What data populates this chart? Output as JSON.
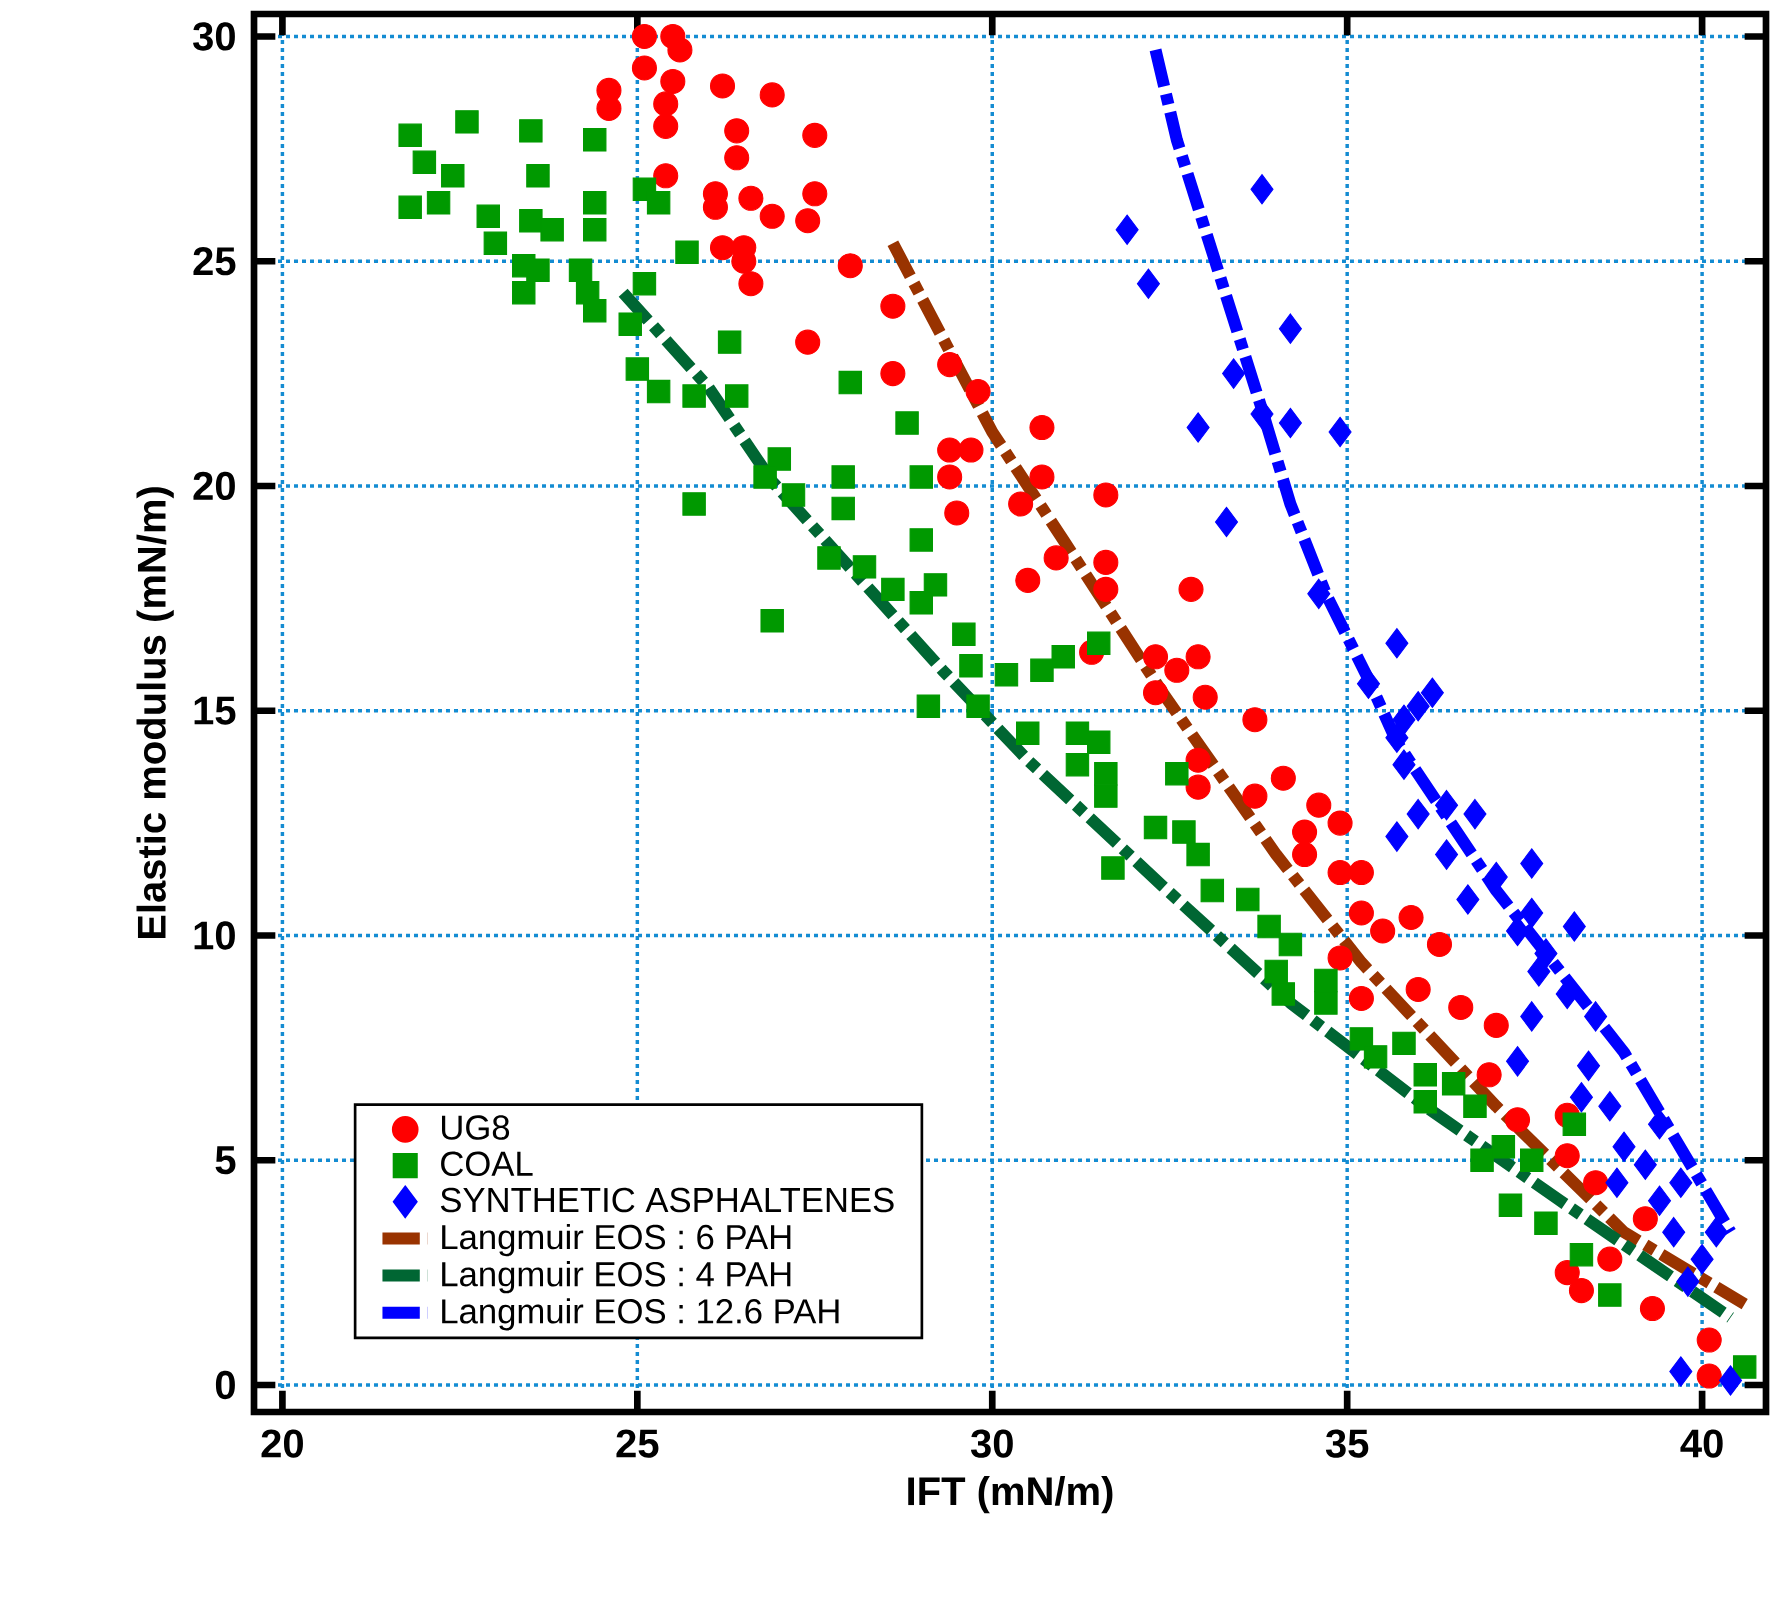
{
  "chart_data": {
    "type": "scatter",
    "xlabel": "IFT (mN/m)",
    "ylabel": "Elastic modulus (mN/m)",
    "xlim": [
      19.6,
      40.9
    ],
    "ylim": [
      -0.6,
      30.5
    ],
    "xticks": [
      20,
      25,
      30,
      35,
      40
    ],
    "yticks": [
      0,
      5,
      10,
      15,
      20,
      25,
      30
    ],
    "grid": true,
    "legend": "bottom left",
    "series": [
      {
        "name": "UG8",
        "color": "#ff0000",
        "marker": "circle",
        "x": [
          25.1,
          25.5,
          25.6,
          25.1,
          25.5,
          24.6,
          24.6,
          25.4,
          25.4,
          26.2,
          26.9,
          26.4,
          27.5,
          26.4,
          25.4,
          26.1,
          26.1,
          26.6,
          26.9,
          27.5,
          27.4,
          26.2,
          26.5,
          26.5,
          26.6,
          28.0,
          28.6,
          27.4,
          28.6,
          29.4,
          29.8,
          29.4,
          29.7,
          29.4,
          29.5,
          30.7,
          30.7,
          30.4,
          31.6,
          31.6,
          30.9,
          30.5,
          31.6,
          32.8,
          31.4,
          32.3,
          32.9,
          32.6,
          33.0,
          32.3,
          33.7,
          32.9,
          32.9,
          34.1,
          33.7,
          34.6,
          34.9,
          34.4,
          34.4,
          34.9,
          35.2,
          35.2,
          35.9,
          35.5,
          36.3,
          34.9,
          35.2,
          36.0,
          36.6,
          37.1,
          37.0,
          37.4,
          38.1,
          38.1,
          38.5,
          38.1,
          38.3,
          38.7,
          39.3,
          40.1,
          40.1,
          39.2
        ],
        "values": [
          30.0,
          30.0,
          29.7,
          29.3,
          29.0,
          28.8,
          28.4,
          28.5,
          28.0,
          28.9,
          28.7,
          27.9,
          27.8,
          27.3,
          26.9,
          26.5,
          26.2,
          26.4,
          26.0,
          26.5,
          25.9,
          25.3,
          25.3,
          25.0,
          24.5,
          24.9,
          24.0,
          23.2,
          22.5,
          22.7,
          22.1,
          20.8,
          20.8,
          20.2,
          19.4,
          21.3,
          20.2,
          19.6,
          19.8,
          18.3,
          18.4,
          17.9,
          17.7,
          17.7,
          16.3,
          16.2,
          16.2,
          15.9,
          15.3,
          15.4,
          14.8,
          13.9,
          13.3,
          13.5,
          13.1,
          12.9,
          12.5,
          12.3,
          11.8,
          11.4,
          11.4,
          10.5,
          10.4,
          10.1,
          9.8,
          9.5,
          8.6,
          8.8,
          8.4,
          8.0,
          6.9,
          5.9,
          6.0,
          5.1,
          4.5,
          2.5,
          2.1,
          2.8,
          1.7,
          1.0,
          0.2,
          3.7
        ]
      },
      {
        "name": "COAL",
        "color": "#009900",
        "marker": "square",
        "x": [
          21.8,
          22.6,
          23.5,
          24.4,
          22.0,
          22.4,
          21.8,
          22.2,
          23.6,
          24.4,
          25.1,
          25.3,
          24.4,
          22.9,
          23.0,
          23.5,
          23.8,
          23.4,
          23.6,
          23.4,
          24.2,
          25.7,
          24.3,
          25.1,
          24.4,
          24.9,
          25.0,
          25.3,
          25.8,
          26.3,
          26.4,
          28.0,
          25.8,
          27.0,
          26.8,
          27.2,
          27.9,
          27.9,
          28.8,
          29.0,
          29.0,
          27.7,
          28.2,
          28.6,
          29.2,
          29.0,
          26.9,
          29.6,
          29.7,
          30.2,
          29.1,
          30.7,
          31.0,
          31.5,
          29.8,
          30.5,
          31.2,
          31.5,
          31.2,
          31.6,
          31.6,
          32.6,
          32.3,
          32.7,
          32.9,
          31.7,
          33.1,
          33.6,
          33.9,
          34.2,
          34.0,
          34.7,
          34.1,
          34.7,
          35.2,
          35.4,
          35.8,
          36.1,
          36.5,
          36.1,
          36.8,
          36.9,
          37.2,
          37.6,
          37.3,
          37.8,
          38.2,
          38.3,
          38.7,
          40.6
        ],
        "values": [
          27.8,
          28.1,
          27.9,
          27.7,
          27.2,
          26.9,
          26.2,
          26.3,
          26.9,
          26.3,
          26.6,
          26.3,
          25.7,
          26.0,
          25.4,
          25.9,
          25.7,
          24.9,
          24.8,
          24.3,
          24.8,
          25.2,
          24.3,
          24.5,
          23.9,
          23.6,
          22.6,
          22.1,
          22.0,
          23.2,
          22.0,
          22.3,
          19.6,
          20.6,
          20.2,
          19.8,
          20.2,
          19.5,
          21.4,
          20.2,
          18.8,
          18.4,
          18.2,
          17.7,
          17.8,
          17.4,
          17.0,
          16.7,
          16.0,
          15.8,
          15.1,
          15.9,
          16.2,
          16.5,
          15.1,
          14.5,
          14.5,
          14.3,
          13.8,
          13.6,
          13.1,
          13.6,
          12.4,
          12.3,
          11.8,
          11.5,
          11.0,
          10.8,
          10.2,
          9.8,
          9.2,
          9.0,
          8.7,
          8.5,
          7.7,
          7.3,
          7.6,
          6.9,
          6.7,
          6.3,
          6.2,
          5.0,
          5.3,
          5.0,
          4.0,
          3.6,
          5.8,
          2.9,
          2.0,
          0.4
        ]
      },
      {
        "name": "SYNTHETIC ASPHALTENES",
        "color": "#0000ff",
        "marker": "diamond",
        "x": [
          33.8,
          31.9,
          32.2,
          34.2,
          33.4,
          32.9,
          34.2,
          34.9,
          33.8,
          33.3,
          34.6,
          35.7,
          36.0,
          35.3,
          36.2,
          35.8,
          35.7,
          35.8,
          36.0,
          35.7,
          36.4,
          36.8,
          36.4,
          36.7,
          37.1,
          37.6,
          37.6,
          37.4,
          38.2,
          37.8,
          37.7,
          38.1,
          38.5,
          37.6,
          37.4,
          38.4,
          38.3,
          38.7,
          39.4,
          38.9,
          39.2,
          39.7,
          38.8,
          39.4,
          39.6,
          40.2,
          40.0,
          39.8,
          39.7,
          40.4
        ],
        "values": [
          26.6,
          25.7,
          24.5,
          23.5,
          22.5,
          21.3,
          21.4,
          21.2,
          21.6,
          19.2,
          17.6,
          16.5,
          15.1,
          15.6,
          15.4,
          14.8,
          14.4,
          13.8,
          12.7,
          12.2,
          12.9,
          12.7,
          11.8,
          10.8,
          11.3,
          11.6,
          10.5,
          10.1,
          10.2,
          9.6,
          9.2,
          8.7,
          8.2,
          8.2,
          7.2,
          7.1,
          6.4,
          6.2,
          5.8,
          5.3,
          4.9,
          4.5,
          4.5,
          4.1,
          3.4,
          3.4,
          2.8,
          2.3,
          0.3,
          0.1
        ]
      },
      {
        "name": "Langmuir EOS : 6 PAH",
        "type": "line",
        "color": "#993300",
        "line_style": "dashed",
        "x": [
          28.6,
          30.0,
          31.0,
          32.4,
          34.0,
          35.2,
          37.1,
          38.9,
          40.6
        ],
        "values": [
          25.4,
          21.2,
          18.8,
          15.4,
          11.8,
          9.4,
          6.2,
          3.4,
          1.8
        ]
      },
      {
        "name": "Langmuir EOS : 4 PAH",
        "type": "line",
        "color": "#006633",
        "line_style": "dashed",
        "x": [
          24.8,
          26.0,
          26.9,
          28.1,
          29.3,
          30.5,
          32.4,
          34.2,
          36.1,
          38.0,
          40.4
        ],
        "values": [
          24.3,
          22.2,
          20.1,
          18.0,
          15.9,
          13.9,
          11.1,
          8.5,
          6.2,
          4.1,
          1.5
        ]
      },
      {
        "name": "Langmuir EOS : 12.6 PAH",
        "type": "line",
        "color": "#0000ff",
        "line_style": "dashed",
        "x": [
          32.3,
          32.6,
          33.0,
          33.4,
          33.8,
          34.2,
          34.7,
          35.3,
          35.7,
          37.1,
          38.9,
          40.4
        ],
        "values": [
          29.7,
          27.7,
          25.7,
          23.7,
          21.7,
          19.6,
          17.6,
          15.7,
          14.3,
          11.0,
          7.4,
          3.4
        ]
      }
    ]
  }
}
